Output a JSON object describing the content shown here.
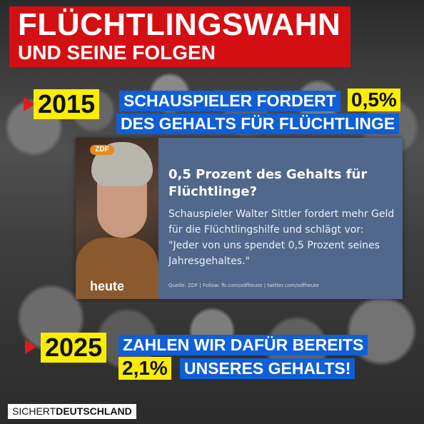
{
  "header": {
    "line1": "FLÜCHTLINGSWAHN",
    "line2": "UND SEINE FOLGEN"
  },
  "section_2015": {
    "year": "2015",
    "line1_prefix": "SCHAUSPIELER FORDERT",
    "highlight": "0,5%",
    "line2": "DES GEHALTS FÜR FLÜCHTLINGE"
  },
  "news_card": {
    "channel_badge": "ZDF",
    "program_logo": "heute",
    "headline": "0,5 Prozent des Gehalts für Flüchtlinge?",
    "body": "Schauspieler Walter Sittler fordert mehr Geld für die Flüchtlingshilfe und schlägt vor: \"Jeder von uns spendet 0,5 Prozent seines Jahresgehaltes.\"",
    "source": "Quelle: ZDF | Follow: fb.com/zdfheute | twitter.com/zdfheute"
  },
  "section_2025": {
    "year": "2025",
    "line1": "ZAHLEN WIR DAFÜR BEREITS",
    "highlight": "2,1%",
    "line2_suffix": "UNSERES GEHALTS!"
  },
  "brand": {
    "part1": "SICHERT",
    "part2": "DEUTSCHLAND"
  },
  "colors": {
    "header_red": "#d40f14",
    "year_yellow": "#f9ed00",
    "text_blue": "#0f5fd6",
    "card_bg": "#51678c"
  }
}
